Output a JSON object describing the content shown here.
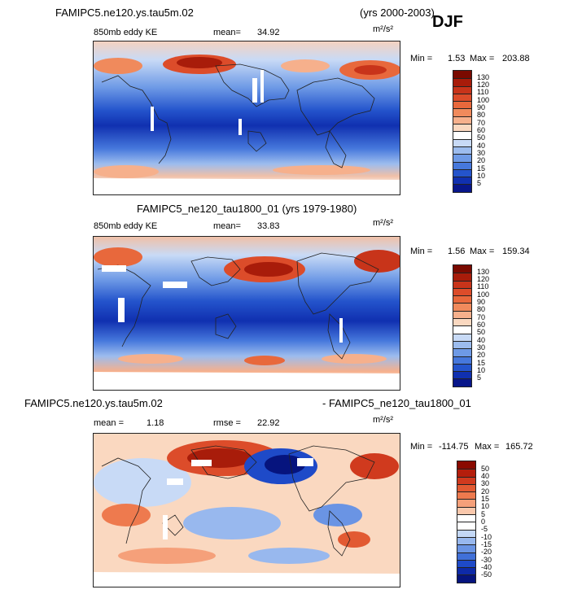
{
  "season": "DJF",
  "panel1": {
    "case": "FAMIPC5.ne120.ys.tau5m.02",
    "years": "(yrs 2000-2003)",
    "field": "850mb eddy KE",
    "mean_label": "mean=",
    "mean_value": "34.92",
    "units": "m²/s²",
    "min_label": "Min =",
    "min_value": "1.53",
    "max_label": "Max =",
    "max_value": "203.88"
  },
  "panel2": {
    "title": "FAMIPC5_ne120_tau1800_01 (yrs 1979-1980)",
    "field": "850mb eddy KE",
    "mean_label": "mean=",
    "mean_value": "33.83",
    "units": "m²/s²",
    "min_label": "Min =",
    "min_value": "1.56",
    "max_label": "Max =",
    "max_value": "159.34"
  },
  "panel3": {
    "case_a": "FAMIPC5.ne120.ys.tau5m.02",
    "case_b": "- FAMIPC5_ne120_tau1800_01",
    "mean_label": "mean =",
    "mean_value": "1.18",
    "rmse_label": "rmse =",
    "rmse_value": "22.92",
    "units": "m²/s²",
    "min_label": "Min =",
    "min_value": "-114.75",
    "max_label": "Max =",
    "max_value": "165.72"
  },
  "colorbar_abs": {
    "labels": [
      "130",
      "120",
      "110",
      "100",
      "90",
      "80",
      "70",
      "60",
      "50",
      "40",
      "30",
      "20",
      "15",
      "10",
      "5"
    ],
    "colors": [
      "#7a0a00",
      "#a81c0a",
      "#c8341a",
      "#dc4c2a",
      "#e8683c",
      "#f08a5c",
      "#f6b08c",
      "#fad8c0",
      "#ffffff",
      "#c8daf6",
      "#9cbcee",
      "#6e9ae6",
      "#4678dc",
      "#2454cc",
      "#1030b0",
      "#08168a"
    ]
  },
  "colorbar_diff": {
    "labels": [
      "50",
      "40",
      "30",
      "20",
      "15",
      "10",
      "5",
      "0",
      "-5",
      "-10",
      "-15",
      "-20",
      "-30",
      "-40",
      "-50"
    ],
    "colors": [
      "#8a0a00",
      "#b41e0c",
      "#d03a1e",
      "#e25a32",
      "#ee7a4e",
      "#f5a07a",
      "#fac8ac",
      "#ffffff",
      "#ffffff",
      "#c4d8f6",
      "#98b8ee",
      "#6a94e4",
      "#4070d8",
      "#1e4ac8",
      "#0e2aa8",
      "#06147e"
    ]
  }
}
